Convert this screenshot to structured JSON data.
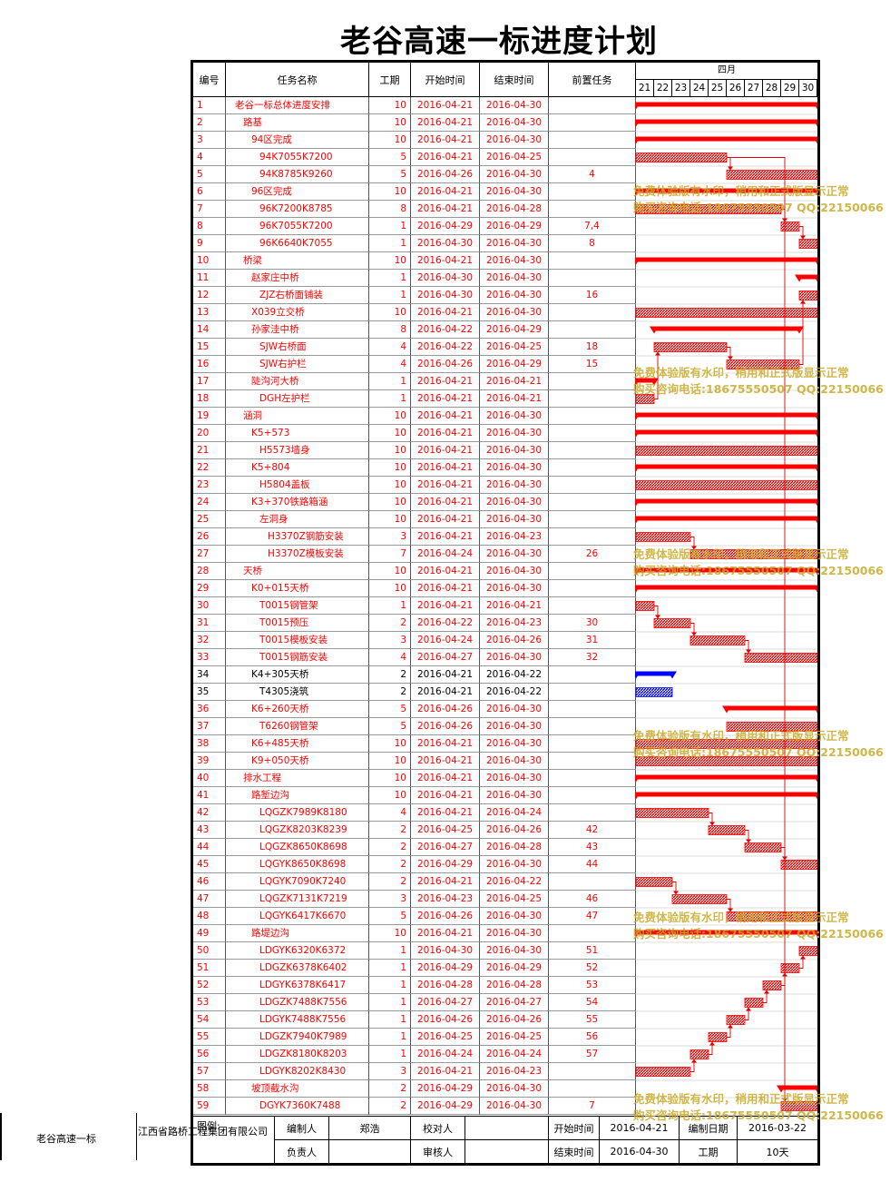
{
  "title": "老谷高速一标进度计划",
  "headers": {
    "id": "编号",
    "name": "任务名称",
    "duration": "工期",
    "start": "开始时间",
    "end": "结束时间",
    "pred": "前置任务",
    "month": "四月"
  },
  "days": [
    "21",
    "22",
    "23",
    "24",
    "25",
    "26",
    "27",
    "28",
    "29",
    "30"
  ],
  "colors": {
    "red": "#ff0000",
    "blue": "#0000ff",
    "text_red": "#ff0000",
    "text_black": "#000000"
  },
  "tasks": [
    {
      "id": "1",
      "name": "老谷一标总体进度安排",
      "indent": 0,
      "dur": "10",
      "start": "2016-04-21",
      "end": "2016-04-30",
      "pred": "",
      "s": 21,
      "e": 30,
      "type": "summary",
      "color": "red"
    },
    {
      "id": "2",
      "name": "路基",
      "indent": 1,
      "dur": "10",
      "start": "2016-04-21",
      "end": "2016-04-30",
      "pred": "",
      "s": 21,
      "e": 30,
      "type": "summary",
      "color": "red"
    },
    {
      "id": "3",
      "name": "94区完成",
      "indent": 2,
      "dur": "10",
      "start": "2016-04-21",
      "end": "2016-04-30",
      "pred": "",
      "s": 21,
      "e": 30,
      "type": "summary",
      "color": "red"
    },
    {
      "id": "4",
      "name": "94K7055K7200",
      "indent": 3,
      "dur": "5",
      "start": "2016-04-21",
      "end": "2016-04-25",
      "pred": "",
      "s": 21,
      "e": 25,
      "type": "task",
      "color": "red"
    },
    {
      "id": "5",
      "name": "94K8785K9260",
      "indent": 3,
      "dur": "5",
      "start": "2016-04-26",
      "end": "2016-04-30",
      "pred": "4",
      "s": 26,
      "e": 30,
      "type": "task",
      "color": "red"
    },
    {
      "id": "6",
      "name": "96区完成",
      "indent": 2,
      "dur": "10",
      "start": "2016-04-21",
      "end": "2016-04-30",
      "pred": "",
      "s": 21,
      "e": 30,
      "type": "summary",
      "color": "red"
    },
    {
      "id": "7",
      "name": "96K7200K8785",
      "indent": 3,
      "dur": "8",
      "start": "2016-04-21",
      "end": "2016-04-28",
      "pred": "",
      "s": 21,
      "e": 28,
      "type": "task",
      "color": "red"
    },
    {
      "id": "8",
      "name": "96K7055K7200",
      "indent": 3,
      "dur": "1",
      "start": "2016-04-29",
      "end": "2016-04-29",
      "pred": "7,4",
      "s": 29,
      "e": 29,
      "type": "task",
      "color": "red"
    },
    {
      "id": "9",
      "name": "96K6640K7055",
      "indent": 3,
      "dur": "1",
      "start": "2016-04-30",
      "end": "2016-04-30",
      "pred": "8",
      "s": 30,
      "e": 30,
      "type": "task",
      "color": "red"
    },
    {
      "id": "10",
      "name": "桥梁",
      "indent": 1,
      "dur": "10",
      "start": "2016-04-21",
      "end": "2016-04-30",
      "pred": "",
      "s": 21,
      "e": 30,
      "type": "summary",
      "color": "red"
    },
    {
      "id": "11",
      "name": "赵家庄中桥",
      "indent": 2,
      "dur": "1",
      "start": "2016-04-30",
      "end": "2016-04-30",
      "pred": "",
      "s": 30,
      "e": 30,
      "type": "summary",
      "color": "red"
    },
    {
      "id": "12",
      "name": "ZJZ右桥面铺装",
      "indent": 3,
      "dur": "1",
      "start": "2016-04-30",
      "end": "2016-04-30",
      "pred": "16",
      "s": 30,
      "e": 30,
      "type": "task",
      "color": "red"
    },
    {
      "id": "13",
      "name": "X039立交桥",
      "indent": 2,
      "dur": "10",
      "start": "2016-04-21",
      "end": "2016-04-30",
      "pred": "",
      "s": 21,
      "e": 30,
      "type": "task",
      "color": "red"
    },
    {
      "id": "14",
      "name": "孙家洼中桥",
      "indent": 2,
      "dur": "8",
      "start": "2016-04-22",
      "end": "2016-04-29",
      "pred": "",
      "s": 22,
      "e": 29,
      "type": "summary",
      "color": "red"
    },
    {
      "id": "15",
      "name": "SJW右桥面",
      "indent": 3,
      "dur": "4",
      "start": "2016-04-22",
      "end": "2016-04-25",
      "pred": "18",
      "s": 22,
      "e": 25,
      "type": "task",
      "color": "red"
    },
    {
      "id": "16",
      "name": "SJW右护栏",
      "indent": 3,
      "dur": "4",
      "start": "2016-04-26",
      "end": "2016-04-29",
      "pred": "15",
      "s": 26,
      "e": 29,
      "type": "task",
      "color": "red"
    },
    {
      "id": "17",
      "name": "陡沟河大桥",
      "indent": 2,
      "dur": "1",
      "start": "2016-04-21",
      "end": "2016-04-21",
      "pred": "",
      "s": 21,
      "e": 21,
      "type": "summary",
      "color": "red"
    },
    {
      "id": "18",
      "name": "DGH左护栏",
      "indent": 3,
      "dur": "1",
      "start": "2016-04-21",
      "end": "2016-04-21",
      "pred": "",
      "s": 21,
      "e": 21,
      "type": "task",
      "color": "red"
    },
    {
      "id": "19",
      "name": "涵洞",
      "indent": 1,
      "dur": "10",
      "start": "2016-04-21",
      "end": "2016-04-30",
      "pred": "",
      "s": 21,
      "e": 30,
      "type": "summary",
      "color": "red"
    },
    {
      "id": "20",
      "name": "K5+573",
      "indent": 2,
      "dur": "10",
      "start": "2016-04-21",
      "end": "2016-04-30",
      "pred": "",
      "s": 21,
      "e": 30,
      "type": "summary",
      "color": "red"
    },
    {
      "id": "21",
      "name": "H5573墙身",
      "indent": 3,
      "dur": "10",
      "start": "2016-04-21",
      "end": "2016-04-30",
      "pred": "",
      "s": 21,
      "e": 30,
      "type": "task",
      "color": "red"
    },
    {
      "id": "22",
      "name": "K5+804",
      "indent": 2,
      "dur": "10",
      "start": "2016-04-21",
      "end": "2016-04-30",
      "pred": "",
      "s": 21,
      "e": 30,
      "type": "summary",
      "color": "red"
    },
    {
      "id": "23",
      "name": "H5804盖板",
      "indent": 3,
      "dur": "10",
      "start": "2016-04-21",
      "end": "2016-04-30",
      "pred": "",
      "s": 21,
      "e": 30,
      "type": "task",
      "color": "red"
    },
    {
      "id": "24",
      "name": "K3+370铁路箱涵",
      "indent": 2,
      "dur": "10",
      "start": "2016-04-21",
      "end": "2016-04-30",
      "pred": "",
      "s": 21,
      "e": 30,
      "type": "summary",
      "color": "red"
    },
    {
      "id": "25",
      "name": "左洞身",
      "indent": 3,
      "dur": "10",
      "start": "2016-04-21",
      "end": "2016-04-30",
      "pred": "",
      "s": 21,
      "e": 30,
      "type": "summary",
      "color": "red"
    },
    {
      "id": "26",
      "name": "H3370Z钢筋安装",
      "indent": 4,
      "dur": "3",
      "start": "2016-04-21",
      "end": "2016-04-23",
      "pred": "",
      "s": 21,
      "e": 23,
      "type": "task",
      "color": "red"
    },
    {
      "id": "27",
      "name": "H3370Z模板安装",
      "indent": 4,
      "dur": "7",
      "start": "2016-04-24",
      "end": "2016-04-30",
      "pred": "26",
      "s": 24,
      "e": 30,
      "type": "task",
      "color": "red"
    },
    {
      "id": "28",
      "name": "天桥",
      "indent": 1,
      "dur": "10",
      "start": "2016-04-21",
      "end": "2016-04-30",
      "pred": "",
      "s": 21,
      "e": 30,
      "type": "summary",
      "color": "red"
    },
    {
      "id": "29",
      "name": "K0+015天桥",
      "indent": 2,
      "dur": "10",
      "start": "2016-04-21",
      "end": "2016-04-30",
      "pred": "",
      "s": 21,
      "e": 30,
      "type": "summary",
      "color": "red"
    },
    {
      "id": "30",
      "name": "T0015钢管架",
      "indent": 3,
      "dur": "1",
      "start": "2016-04-21",
      "end": "2016-04-21",
      "pred": "",
      "s": 21,
      "e": 21,
      "type": "task",
      "color": "red"
    },
    {
      "id": "31",
      "name": "T0015预压",
      "indent": 3,
      "dur": "2",
      "start": "2016-04-22",
      "end": "2016-04-23",
      "pred": "30",
      "s": 22,
      "e": 23,
      "type": "task",
      "color": "red"
    },
    {
      "id": "32",
      "name": "T0015模板安装",
      "indent": 3,
      "dur": "3",
      "start": "2016-04-24",
      "end": "2016-04-26",
      "pred": "31",
      "s": 24,
      "e": 26,
      "type": "task",
      "color": "red"
    },
    {
      "id": "33",
      "name": "T0015钢筋安装",
      "indent": 3,
      "dur": "4",
      "start": "2016-04-27",
      "end": "2016-04-30",
      "pred": "32",
      "s": 27,
      "e": 30,
      "type": "task",
      "color": "red"
    },
    {
      "id": "34",
      "name": "K4+305天桥",
      "indent": 2,
      "dur": "2",
      "start": "2016-04-21",
      "end": "2016-04-22",
      "pred": "",
      "s": 21,
      "e": 22,
      "type": "summary",
      "color": "blue"
    },
    {
      "id": "35",
      "name": "T4305浇筑",
      "indent": 3,
      "dur": "2",
      "start": "2016-04-21",
      "end": "2016-04-22",
      "pred": "",
      "s": 21,
      "e": 22,
      "type": "task",
      "color": "blue"
    },
    {
      "id": "36",
      "name": "K6+260天桥",
      "indent": 2,
      "dur": "5",
      "start": "2016-04-26",
      "end": "2016-04-30",
      "pred": "",
      "s": 26,
      "e": 30,
      "type": "summary",
      "color": "red"
    },
    {
      "id": "37",
      "name": "T6260钢管架",
      "indent": 3,
      "dur": "5",
      "start": "2016-04-26",
      "end": "2016-04-30",
      "pred": "",
      "s": 26,
      "e": 30,
      "type": "task",
      "color": "red"
    },
    {
      "id": "38",
      "name": "K6+485天桥",
      "indent": 2,
      "dur": "10",
      "start": "2016-04-21",
      "end": "2016-04-30",
      "pred": "",
      "s": 21,
      "e": 30,
      "type": "task",
      "color": "red"
    },
    {
      "id": "39",
      "name": "K9+050天桥",
      "indent": 2,
      "dur": "10",
      "start": "2016-04-21",
      "end": "2016-04-30",
      "pred": "",
      "s": 21,
      "e": 30,
      "type": "task",
      "color": "red"
    },
    {
      "id": "40",
      "name": "排水工程",
      "indent": 1,
      "dur": "10",
      "start": "2016-04-21",
      "end": "2016-04-30",
      "pred": "",
      "s": 21,
      "e": 30,
      "type": "summary",
      "color": "red"
    },
    {
      "id": "41",
      "name": "路堑边沟",
      "indent": 2,
      "dur": "10",
      "start": "2016-04-21",
      "end": "2016-04-30",
      "pred": "",
      "s": 21,
      "e": 30,
      "type": "summary",
      "color": "red"
    },
    {
      "id": "42",
      "name": "LQGZK7989K8180",
      "indent": 3,
      "dur": "4",
      "start": "2016-04-21",
      "end": "2016-04-24",
      "pred": "",
      "s": 21,
      "e": 24,
      "type": "task",
      "color": "red"
    },
    {
      "id": "43",
      "name": "LQGZK8203K8239",
      "indent": 3,
      "dur": "2",
      "start": "2016-04-25",
      "end": "2016-04-26",
      "pred": "42",
      "s": 25,
      "e": 26,
      "type": "task",
      "color": "red"
    },
    {
      "id": "44",
      "name": "LQGZK8650K8698",
      "indent": 3,
      "dur": "2",
      "start": "2016-04-27",
      "end": "2016-04-28",
      "pred": "43",
      "s": 27,
      "e": 28,
      "type": "task",
      "color": "red"
    },
    {
      "id": "45",
      "name": "LQGYK8650K8698",
      "indent": 3,
      "dur": "2",
      "start": "2016-04-29",
      "end": "2016-04-30",
      "pred": "44",
      "s": 29,
      "e": 30,
      "type": "task",
      "color": "red"
    },
    {
      "id": "46",
      "name": "LQGYK7090K7240",
      "indent": 3,
      "dur": "2",
      "start": "2016-04-21",
      "end": "2016-04-22",
      "pred": "",
      "s": 21,
      "e": 22,
      "type": "task",
      "color": "red"
    },
    {
      "id": "47",
      "name": "LQGZK7131K7219",
      "indent": 3,
      "dur": "3",
      "start": "2016-04-23",
      "end": "2016-04-25",
      "pred": "46",
      "s": 23,
      "e": 25,
      "type": "task",
      "color": "red"
    },
    {
      "id": "48",
      "name": "LQGYK6417K6670",
      "indent": 3,
      "dur": "5",
      "start": "2016-04-26",
      "end": "2016-04-30",
      "pred": "47",
      "s": 26,
      "e": 30,
      "type": "task",
      "color": "red"
    },
    {
      "id": "49",
      "name": "路堤边沟",
      "indent": 2,
      "dur": "10",
      "start": "2016-04-21",
      "end": "2016-04-30",
      "pred": "",
      "s": 21,
      "e": 30,
      "type": "summary",
      "color": "red"
    },
    {
      "id": "50",
      "name": "LDGYK6320K6372",
      "indent": 3,
      "dur": "1",
      "start": "2016-04-30",
      "end": "2016-04-30",
      "pred": "51",
      "s": 30,
      "e": 30,
      "type": "task",
      "color": "red"
    },
    {
      "id": "51",
      "name": "LDGZK6378K6402",
      "indent": 3,
      "dur": "1",
      "start": "2016-04-29",
      "end": "2016-04-29",
      "pred": "52",
      "s": 29,
      "e": 29,
      "type": "task",
      "color": "red"
    },
    {
      "id": "52",
      "name": "LDGYK6378K6417",
      "indent": 3,
      "dur": "1",
      "start": "2016-04-28",
      "end": "2016-04-28",
      "pred": "53",
      "s": 28,
      "e": 28,
      "type": "task",
      "color": "red"
    },
    {
      "id": "53",
      "name": "LDGZK7488K7556",
      "indent": 3,
      "dur": "1",
      "start": "2016-04-27",
      "end": "2016-04-27",
      "pred": "54",
      "s": 27,
      "e": 27,
      "type": "task",
      "color": "red"
    },
    {
      "id": "54",
      "name": "LDGYK7488K7556",
      "indent": 3,
      "dur": "1",
      "start": "2016-04-26",
      "end": "2016-04-26",
      "pred": "55",
      "s": 26,
      "e": 26,
      "type": "task",
      "color": "red"
    },
    {
      "id": "55",
      "name": "LDGZK7940K7989",
      "indent": 3,
      "dur": "1",
      "start": "2016-04-25",
      "end": "2016-04-25",
      "pred": "56",
      "s": 25,
      "e": 25,
      "type": "task",
      "color": "red"
    },
    {
      "id": "56",
      "name": "LDGZK8180K8203",
      "indent": 3,
      "dur": "1",
      "start": "2016-04-24",
      "end": "2016-04-24",
      "pred": "57",
      "s": 24,
      "e": 24,
      "type": "task",
      "color": "red"
    },
    {
      "id": "57",
      "name": "LDGYK8202K8430",
      "indent": 3,
      "dur": "3",
      "start": "2016-04-21",
      "end": "2016-04-23",
      "pred": "",
      "s": 21,
      "e": 23,
      "type": "task",
      "color": "red"
    },
    {
      "id": "58",
      "name": "坡顶截水沟",
      "indent": 2,
      "dur": "2",
      "start": "2016-04-29",
      "end": "2016-04-30",
      "pred": "",
      "s": 29,
      "e": 30,
      "type": "summary",
      "color": "red"
    },
    {
      "id": "59",
      "name": "DGYK7360K7488",
      "indent": 3,
      "dur": "2",
      "start": "2016-04-29",
      "end": "2016-04-30",
      "pred": "7",
      "s": 29,
      "e": 30,
      "type": "task",
      "color": "red"
    }
  ],
  "watermark": {
    "line1": "免费体验版有水印，稍用和正式版显示正常",
    "line2": "购买咨询电话:18675550507 QQ:22150066"
  },
  "footer": {
    "left_project": "老谷高速一标",
    "company": "江西省路桥工程集团有限公司",
    "legend": "图例:",
    "editor_label": "编制人",
    "editor": "郑浩",
    "checker_label": "校对人",
    "checker": "",
    "responsible_label": "负责人",
    "responsible": "",
    "reviewer_label": "审核人",
    "reviewer": "",
    "start_label": "开始时间",
    "start": "2016-04-21",
    "end_label": "结束时间",
    "end": "2016-04-30",
    "date_label": "编制日期",
    "date": "2016-03-22",
    "dur_label": "工期",
    "dur": "10天"
  }
}
